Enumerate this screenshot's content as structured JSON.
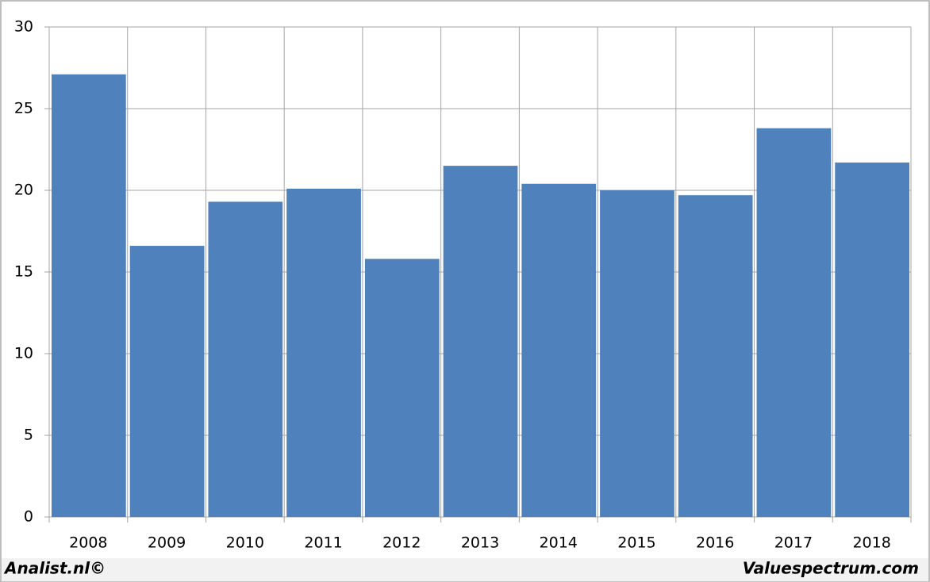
{
  "chart_data": {
    "type": "bar",
    "categories": [
      "2008",
      "2009",
      "2010",
      "2011",
      "2012",
      "2013",
      "2014",
      "2015",
      "2016",
      "2017",
      "2018"
    ],
    "values": [
      27.1,
      16.6,
      19.3,
      20.1,
      15.8,
      21.5,
      20.4,
      20.0,
      19.7,
      23.8,
      21.7
    ],
    "color": "#4f81bd",
    "ylim": [
      0,
      30
    ],
    "yticks": [
      0,
      5,
      10,
      15,
      20,
      25,
      30
    ],
    "grid": true,
    "credits": [
      "Analist.nl©",
      "Valuespectrum.com"
    ]
  }
}
